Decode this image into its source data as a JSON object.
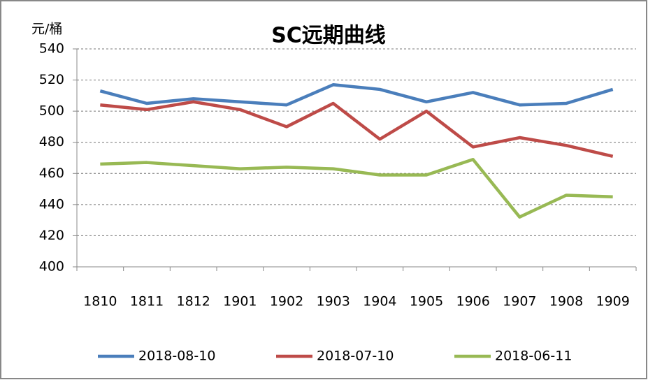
{
  "chart_data": {
    "type": "line",
    "title": "SC远期曲线",
    "y_label": "元/桶",
    "categories": [
      "1810",
      "1811",
      "1812",
      "1901",
      "1902",
      "1903",
      "1904",
      "1905",
      "1906",
      "1907",
      "1908",
      "1909"
    ],
    "series": [
      {
        "name": "2018-08-10",
        "color": "#4a7ebb",
        "values": [
          513,
          505,
          508,
          506,
          504,
          517,
          514,
          506,
          512,
          504,
          505,
          514
        ]
      },
      {
        "name": "2018-07-10",
        "color": "#be4b48",
        "values": [
          504,
          501,
          506,
          501,
          490,
          505,
          482,
          500,
          477,
          483,
          478,
          471
        ]
      },
      {
        "name": "2018-06-11",
        "color": "#98b954",
        "values": [
          466,
          467,
          465,
          463,
          464,
          463,
          459,
          459,
          469,
          432,
          446,
          445
        ]
      }
    ],
    "ylim": [
      400,
      540
    ],
    "yticks": [
      400,
      420,
      440,
      460,
      480,
      500,
      520,
      540
    ],
    "grid": true,
    "legend": "bottom"
  }
}
